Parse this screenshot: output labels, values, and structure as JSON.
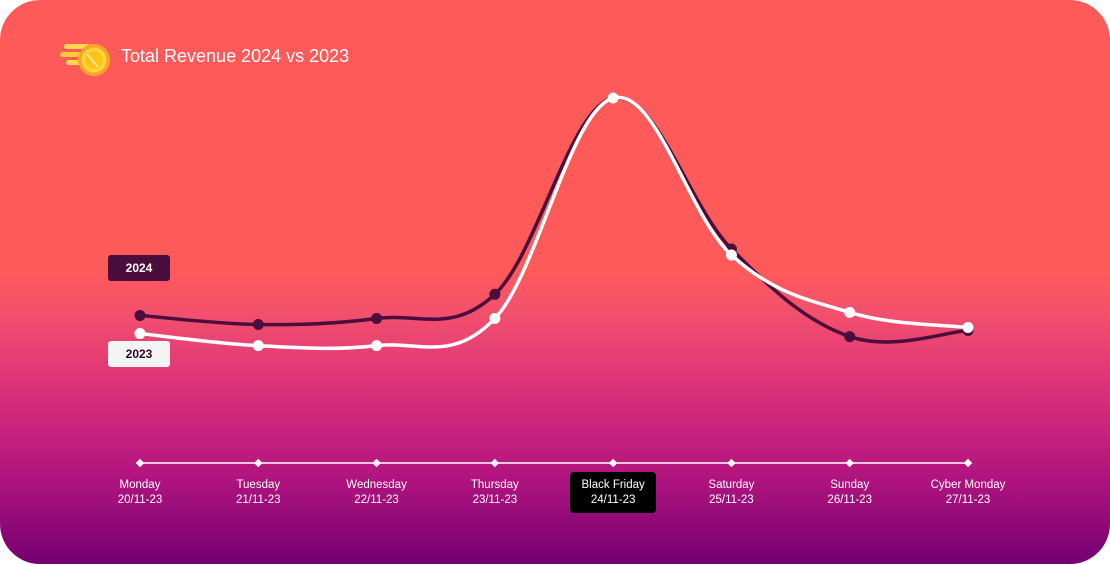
{
  "header": {
    "title": "Total Revenue 2024 vs 2023",
    "icon": "coins-icon"
  },
  "legend": {
    "label_2024": "2024",
    "label_2023": "2023"
  },
  "colors": {
    "series_2024": "#4a0d3c",
    "series_2023": "#ffffff",
    "background_top": "#ff5a5a",
    "background_bottom": "#740070",
    "highlight_label_bg": "#000000"
  },
  "chart_data": {
    "type": "line",
    "title": "Total Revenue 2024 vs 2023",
    "categories": [
      {
        "day": "Monday",
        "date": "20/11-23"
      },
      {
        "day": "Tuesday",
        "date": "21/11-23"
      },
      {
        "day": "Wednesday",
        "date": "22/11-23"
      },
      {
        "day": "Thursday",
        "date": "23/11-23"
      },
      {
        "day": "Black Friday",
        "date": "24/11-23"
      },
      {
        "day": "Saturday",
        "date": "25/11-23"
      },
      {
        "day": "Sunday",
        "date": "26/11-23"
      },
      {
        "day": "Cyber Monday",
        "date": "27/11-23"
      }
    ],
    "highlighted_category": 4,
    "series": [
      {
        "name": "2024",
        "values": [
          28,
          25,
          27,
          35,
          100,
          50,
          21,
          23
        ]
      },
      {
        "name": "2023",
        "values": [
          22,
          18,
          18,
          27,
          100,
          48,
          29,
          24
        ]
      }
    ],
    "ylim": [
      0,
      100
    ],
    "grid": false,
    "legend_position": "left"
  }
}
